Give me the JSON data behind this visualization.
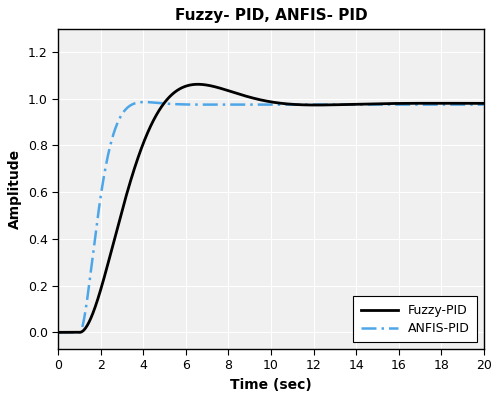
{
  "title": "Fuzzy- PID, ANFIS- PID",
  "xlabel": "Time (sec)",
  "ylabel": "Amplitude",
  "xlim": [
    0,
    20
  ],
  "ylim": [
    -0.07,
    1.3
  ],
  "xticks": [
    0,
    2,
    4,
    6,
    8,
    10,
    12,
    14,
    16,
    18,
    20
  ],
  "yticks": [
    0,
    0.2,
    0.4,
    0.6,
    0.8,
    1.0,
    1.2
  ],
  "fuzzy_pid_color": "#000000",
  "anfis_pid_color": "#4da6e8",
  "legend_labels": [
    "Fuzzy-PID",
    "ANFIS-PID"
  ],
  "background_color": "#ffffff",
  "axes_bg_color": "#f0f0f0",
  "grid_color": "#ffffff",
  "title_fontsize": 11,
  "label_fontsize": 10,
  "tick_fontsize": 9,
  "legend_fontsize": 9
}
